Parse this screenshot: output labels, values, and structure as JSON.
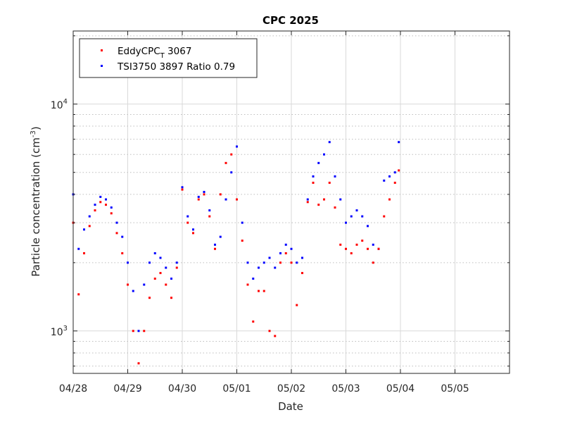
{
  "chart_data": {
    "type": "scatter",
    "title": "CPC 2025",
    "xlabel": "Date",
    "ylabel": "Particle concentration (cm",
    "ylabel_sup": "-3",
    "ylabel_end": ")",
    "yscale": "log",
    "ylim": [
      650,
      21000
    ],
    "xlim": [
      0,
      8
    ],
    "x_unit": "days from 04/28",
    "x_ticks": [
      0,
      1,
      2,
      3,
      4,
      5,
      6,
      7,
      8
    ],
    "x_tick_labels": [
      "04/28",
      "04/29",
      "04/30",
      "05/01",
      "05/02",
      "05/03",
      "05/04",
      "05/05",
      ""
    ],
    "y_ticks": [
      1000,
      10000
    ],
    "y_tick_labels": [
      {
        "base": "10",
        "exp": "3"
      },
      {
        "base": "10",
        "exp": "4"
      }
    ],
    "grid": true,
    "legend_position": "top-left",
    "series": [
      {
        "name": "EddyCPC",
        "name_sub": "T",
        "name_suffix": " 3067",
        "color": "#ff0000",
        "x": [
          0.0,
          0.1,
          0.2,
          0.3,
          0.4,
          0.5,
          0.6,
          0.7,
          0.8,
          0.9,
          1.0,
          1.1,
          1.2,
          1.3,
          1.4,
          1.5,
          1.6,
          1.7,
          1.8,
          1.9,
          2.0,
          2.1,
          2.2,
          2.3,
          2.4,
          2.5,
          2.6,
          2.7,
          2.8,
          2.9,
          3.0,
          3.1,
          3.2,
          3.3,
          3.4,
          3.5,
          3.6,
          3.7,
          3.8,
          3.9,
          4.0,
          4.1,
          4.2,
          4.3,
          4.4,
          4.5,
          4.6,
          4.7,
          4.8,
          4.9,
          5.0,
          5.1,
          5.2,
          5.3,
          5.4,
          5.5,
          5.6,
          5.7,
          5.8,
          5.9,
          5.97
        ],
        "y": [
          3000,
          1450,
          2200,
          2900,
          3400,
          3700,
          3600,
          3300,
          2700,
          2200,
          1600,
          1000,
          720,
          1000,
          1400,
          1700,
          1800,
          1600,
          1400,
          1900,
          4200,
          3000,
          2700,
          3800,
          4000,
          3200,
          2300,
          4000,
          5500,
          6000,
          3800,
          2500,
          1600,
          1100,
          1500,
          1500,
          1000,
          950,
          2000,
          2200,
          2000,
          1300,
          1800,
          3700,
          4500,
          3600,
          3800,
          4500,
          3500,
          2400,
          2300,
          2200,
          2400,
          2500,
          2300,
          2000,
          2300,
          3200,
          3800,
          4500,
          5100
        ]
      },
      {
        "name": "TSI3750 3897 Ratio 0.79",
        "color": "#0000ff",
        "x": [
          0.0,
          0.1,
          0.2,
          0.3,
          0.4,
          0.5,
          0.6,
          0.7,
          0.8,
          0.9,
          1.0,
          1.1,
          1.2,
          1.3,
          1.4,
          1.5,
          1.6,
          1.7,
          1.8,
          1.9,
          2.0,
          2.1,
          2.2,
          2.3,
          2.4,
          2.5,
          2.6,
          2.7,
          2.8,
          2.9,
          3.0,
          3.1,
          3.2,
          3.3,
          3.4,
          3.5,
          3.6,
          3.7,
          3.8,
          3.9,
          4.0,
          4.1,
          4.2,
          4.3,
          4.4,
          4.5,
          4.6,
          4.7,
          4.8,
          4.9,
          5.0,
          5.1,
          5.2,
          5.3,
          5.4,
          5.5,
          5.6,
          5.7,
          5.8,
          5.9,
          5.97
        ],
        "y": [
          4000,
          2300,
          2800,
          3200,
          3600,
          3900,
          3800,
          3500,
          3000,
          2600,
          2000,
          1500,
          1000,
          1600,
          2000,
          2200,
          2100,
          1900,
          1700,
          2000,
          4300,
          3200,
          2800,
          3900,
          4100,
          3400,
          2400,
          2600,
          3800,
          5000,
          6500,
          3000,
          2000,
          1700,
          1900,
          2000,
          2100,
          1900,
          2200,
          2400,
          2300,
          2000,
          2100,
          3800,
          4800,
          5500,
          6000,
          6800,
          4800,
          3800,
          3000,
          3200,
          3400,
          3200,
          2900,
          2400,
          2300,
          4600,
          4800,
          5000,
          6800
        ]
      }
    ]
  }
}
